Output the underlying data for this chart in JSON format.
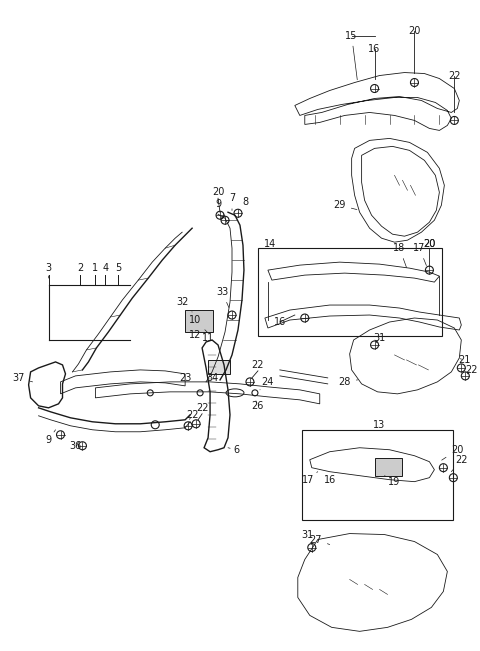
{
  "bg_color": "#ffffff",
  "line_color": "#1a1a1a",
  "fig_width": 4.8,
  "fig_height": 6.51,
  "dpi": 100
}
